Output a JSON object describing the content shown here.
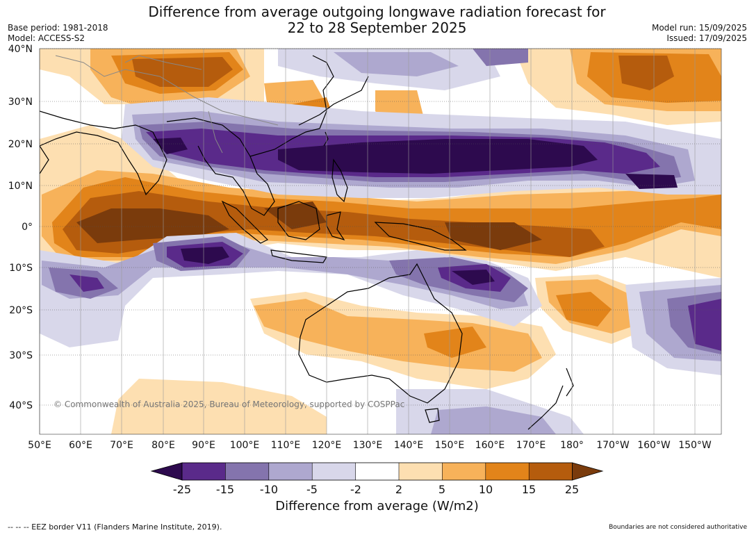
{
  "header": {
    "title_line1": "Difference from average outgoing longwave radiation forecast for",
    "title_line2": "22 to 28 September 2025",
    "base_period": "Base period: 1981-2018",
    "model": "Model: ACCESS-S2",
    "model_run": "Model run: 15/09/2025",
    "issued": "Issued: 17/09/2025"
  },
  "map": {
    "lat_labels": [
      "40°N",
      "30°N",
      "20°N",
      "10°N",
      "0°",
      "10°S",
      "20°S",
      "30°S",
      "40°S"
    ],
    "lon_labels": [
      "50°E",
      "60°E",
      "70°E",
      "80°E",
      "90°E",
      "100°E",
      "110°E",
      "120°E",
      "130°E",
      "140°E",
      "150°E",
      "160°E",
      "170°E",
      "180°",
      "170°W",
      "160°W",
      "150°W"
    ],
    "copyright": "© Commonwealth of Australia 2025, Bureau of Meteorology, supported by COSPPac"
  },
  "colorbar": {
    "labels": [
      "-25",
      "-15",
      "-10",
      "-5",
      "-2",
      "2",
      "5",
      "10",
      "15",
      "25"
    ],
    "title": "Difference from average (W/m2)",
    "colors": {
      "below": "#2d0a4e",
      "bins": [
        "#5a2a8a",
        "#8474ad",
        "#aea8cf",
        "#d8d7ea",
        "#ffffff",
        "#fddfb1",
        "#f7b25a",
        "#e2841a",
        "#b55c0d"
      ],
      "above": "#7a3b0c"
    }
  },
  "footer": {
    "eez": "--  --  -- EEZ border V11 (Flanders Marine Institute, 2019).",
    "boundaries": "Boundaries are not considered authoritative"
  }
}
